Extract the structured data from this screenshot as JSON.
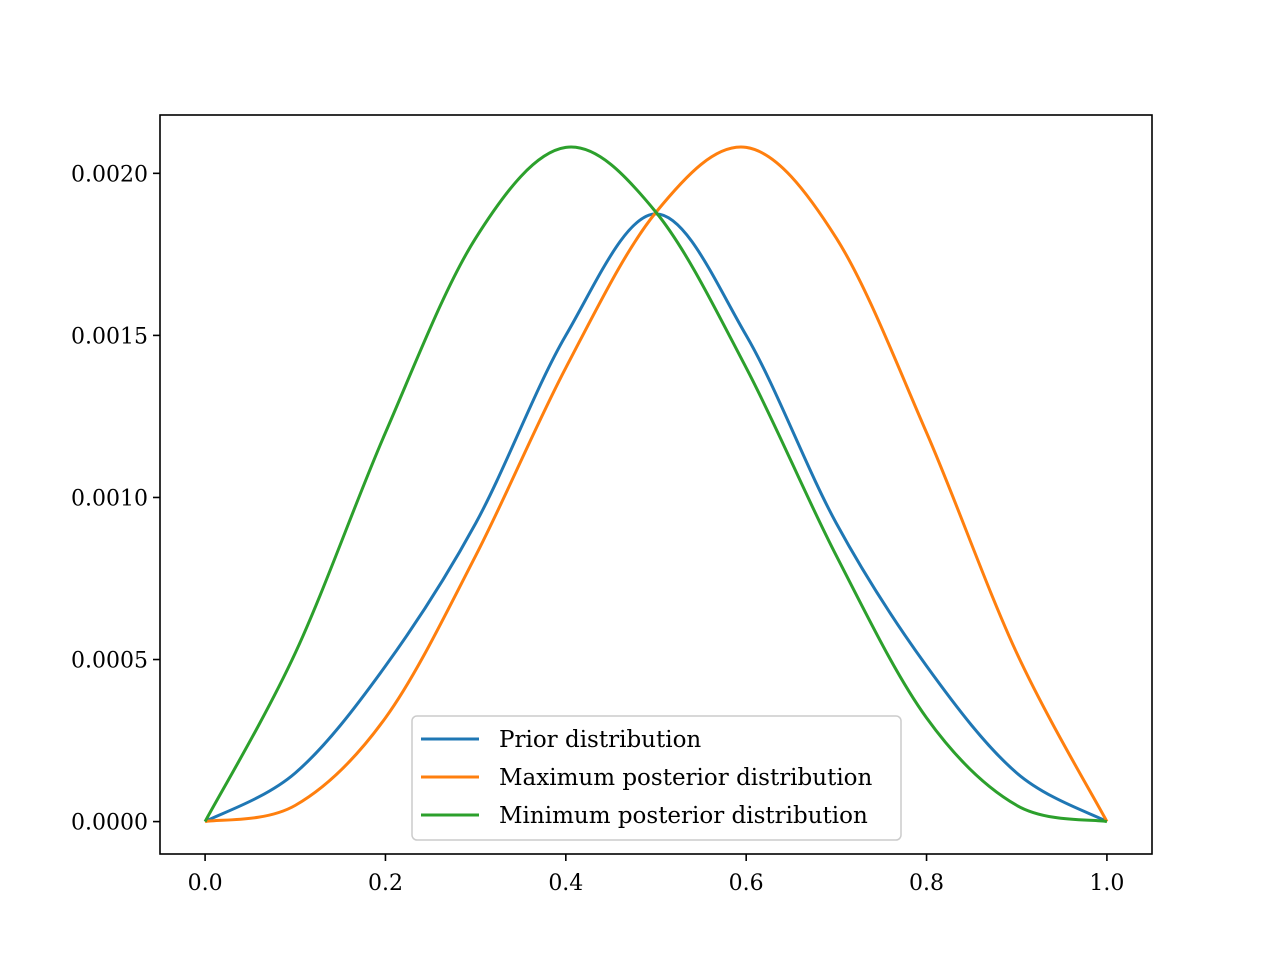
{
  "chart_data": {
    "type": "line",
    "title": "",
    "xlabel": "",
    "ylabel": "",
    "xlim": [
      -0.05,
      1.05
    ],
    "ylim": [
      -0.0001,
      0.00218
    ],
    "x_ticks": [
      0.0,
      0.2,
      0.4,
      0.6,
      0.8,
      1.0
    ],
    "x_tick_labels": [
      "0.0",
      "0.2",
      "0.4",
      "0.6",
      "0.8",
      "1.0"
    ],
    "y_ticks": [
      0.0,
      0.0005,
      0.001,
      0.0015,
      0.002
    ],
    "y_tick_labels": [
      "0.0000",
      "0.0005",
      "0.0010",
      "0.0015",
      "0.0020"
    ],
    "grid": false,
    "legend_position": "lower-center",
    "series": [
      {
        "name": "Prior distribution",
        "color": "#1f77b4",
        "x": [
          0.0,
          0.1,
          0.2,
          0.3,
          0.4,
          0.5,
          0.6,
          0.7,
          0.8,
          0.9,
          1.0
        ],
        "y": [
          0.0,
          0.00015,
          0.00048,
          0.00092,
          0.0015,
          0.001875,
          0.0015,
          0.00092,
          0.00048,
          0.00015,
          0.0
        ]
      },
      {
        "name": "Maximum posterior distribution",
        "color": "#ff7f0e",
        "x": [
          0.0,
          0.1,
          0.2,
          0.3,
          0.4,
          0.5,
          0.6,
          0.7,
          0.8,
          0.9,
          1.0
        ],
        "y": [
          0.0,
          5e-05,
          0.00032,
          0.00082,
          0.0014,
          0.00188,
          0.00208,
          0.0018,
          0.0012,
          0.00052,
          0.0
        ]
      },
      {
        "name": "Minimum posterior distribution",
        "color": "#2ca02c",
        "x": [
          0.0,
          0.1,
          0.2,
          0.3,
          0.4,
          0.5,
          0.6,
          0.7,
          0.8,
          0.9,
          1.0
        ],
        "y": [
          0.0,
          0.00052,
          0.0012,
          0.0018,
          0.00208,
          0.00188,
          0.0014,
          0.00082,
          0.00032,
          5e-05,
          0.0
        ]
      }
    ]
  }
}
